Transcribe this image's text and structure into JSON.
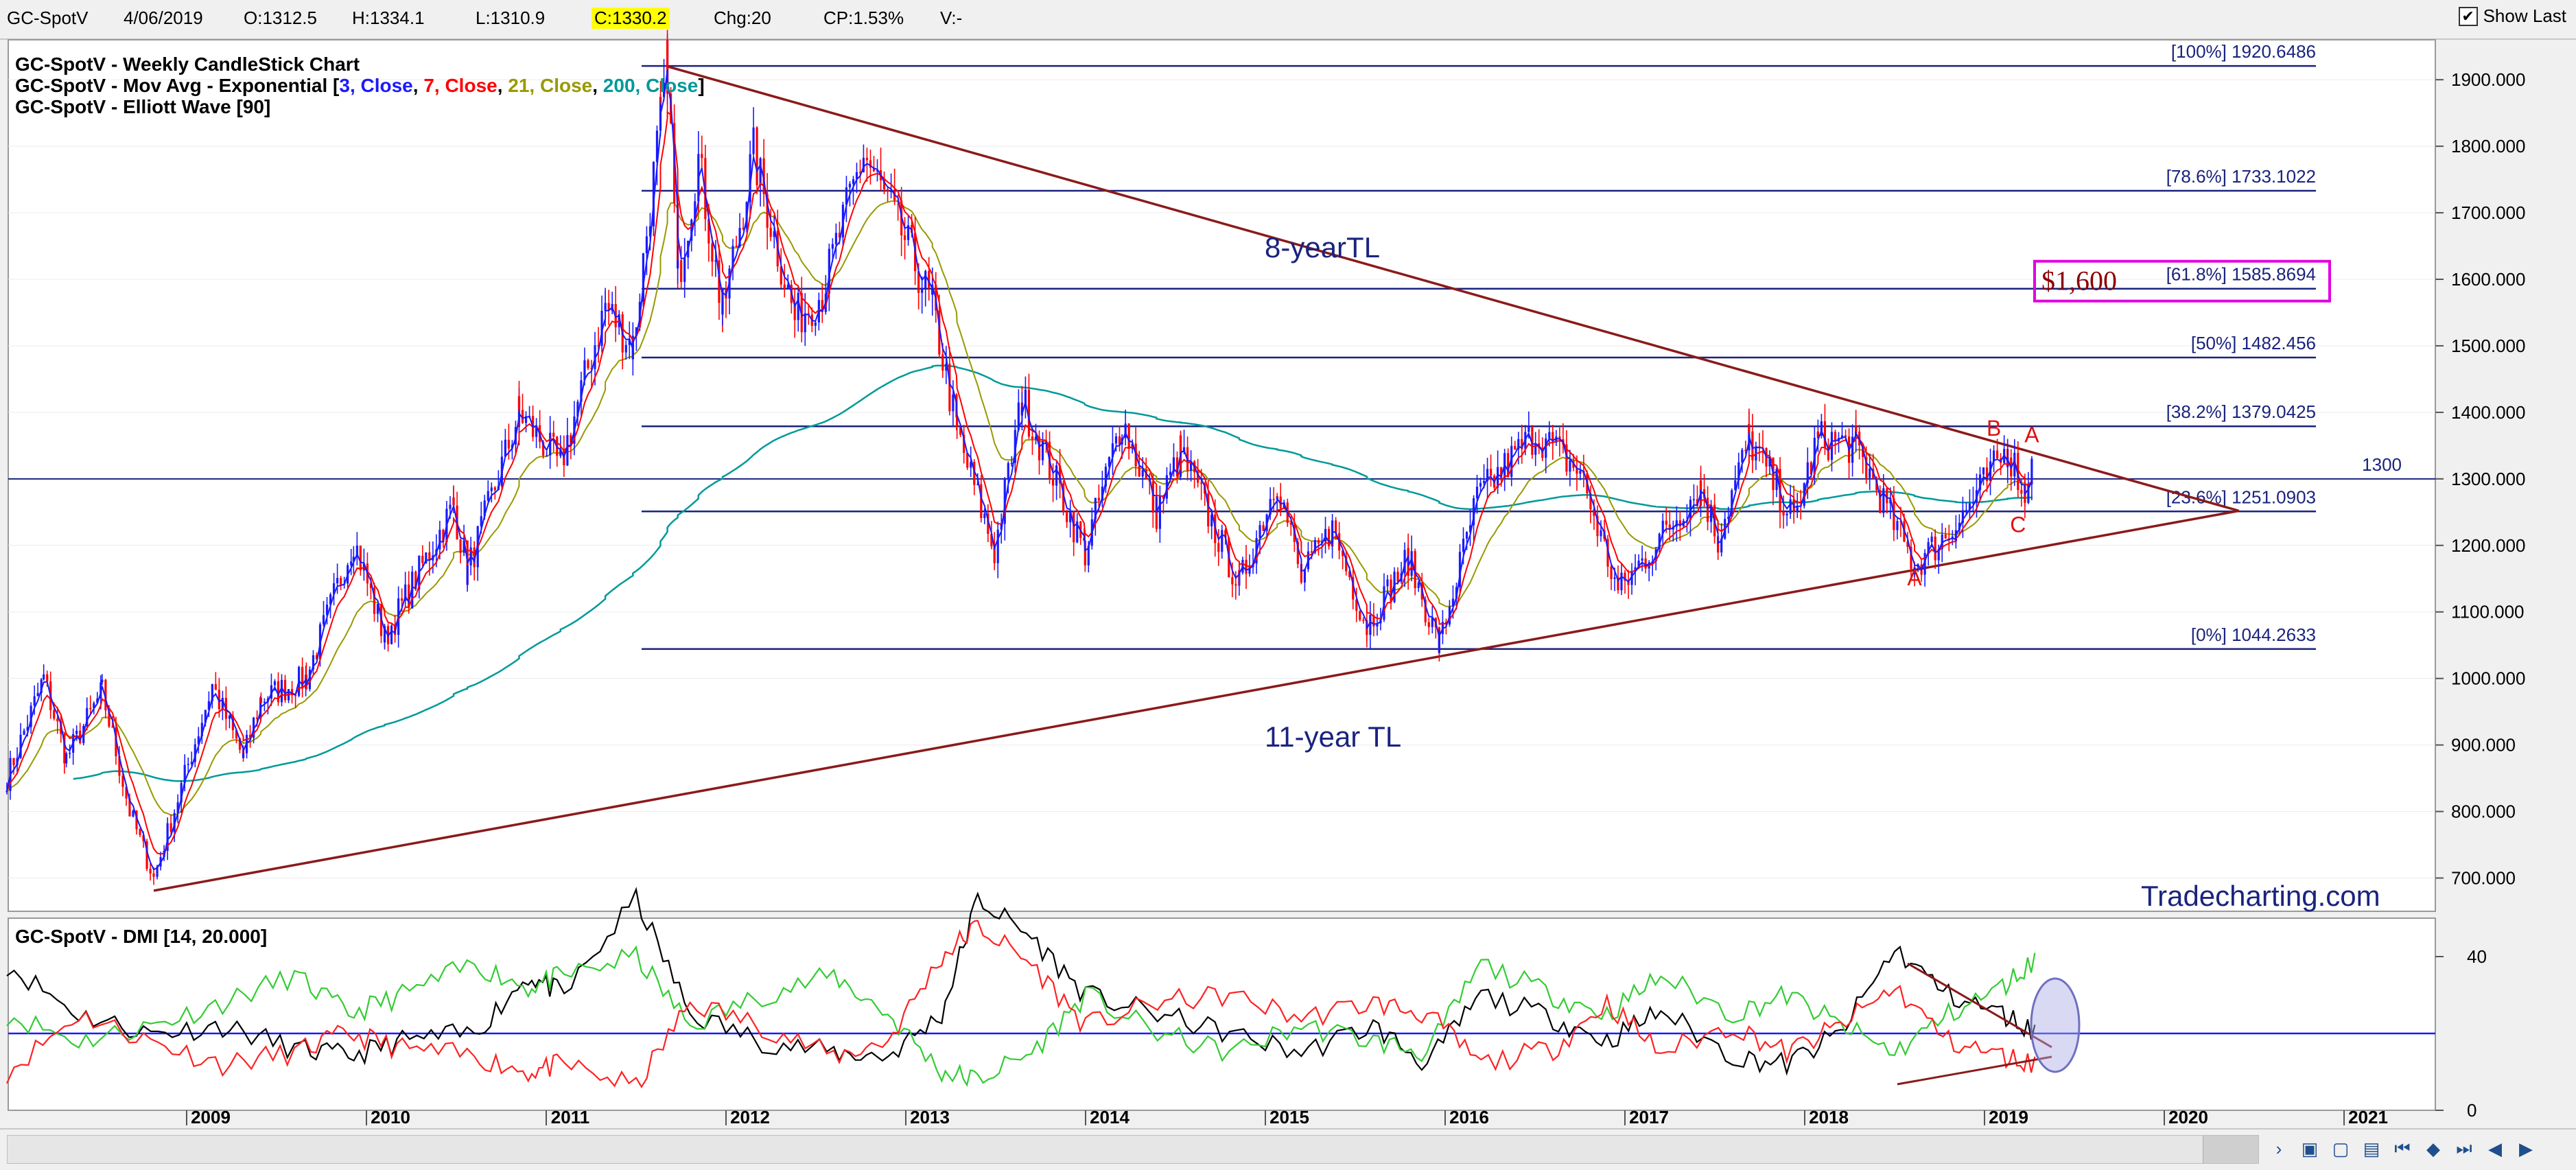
{
  "toolbar": {
    "symbol": "GC-SpotV",
    "date": "4/06/2019",
    "open": "O:1312.5",
    "high": "H:1334.1",
    "low": "L:1310.9",
    "close": "C:1330.2",
    "change": "Chg:20",
    "change_pct": "CP:1.53%",
    "volume": "V:-",
    "show_last_label": "Show Last",
    "show_last_checked": true
  },
  "legend": {
    "line1": "GC-SpotV - Weekly CandleStick Chart",
    "line2_prefix": "GC-SpotV - Mov Avg - Exponential [",
    "ma": [
      {
        "text": "3, Close",
        "color": "#1a1aff"
      },
      {
        "text": "7, Close",
        "color": "#ff0000"
      },
      {
        "text": "21, Close",
        "color": "#999900"
      },
      {
        "text": "200, Close",
        "color": "#009999"
      }
    ],
    "line2_suffix": "]",
    "line3": "GC-SpotV - Elliott Wave [90]",
    "dmi": "GC-SpotV - DMI [14, 20.000]"
  },
  "annotations": {
    "tl_upper": "8-yearTL",
    "tl_lower": "11-year TL",
    "target_label": "$1,600",
    "watermark": "Tradecharting.com",
    "level_1300": "1300",
    "wave_labels": [
      {
        "text": "B",
        "date": "2019-01-20",
        "price": 1365
      },
      {
        "text": "A",
        "date": "2019-04-07",
        "price": 1355
      },
      {
        "text": "C",
        "date": "2019-03-10",
        "price": 1220
      },
      {
        "text": "A",
        "date": "2018-08-12",
        "price": 1140
      }
    ]
  },
  "chart_data": [
    {
      "type": "candlestick",
      "x_axis": {
        "type": "date",
        "start": "2008-01-01",
        "end": "2021-12-31",
        "tick_labels": [
          "2009",
          "2010",
          "2011",
          "2012",
          "2013",
          "2014",
          "2015",
          "2016",
          "2017",
          "2018",
          "2019",
          "2020",
          "2021"
        ]
      },
      "y_axis": {
        "min": 650,
        "max": 1960,
        "side": "right",
        "tick_labels": [
          "700.000",
          "800.000",
          "900.000",
          "1000.000",
          "1100.000",
          "1200.000",
          "1300.000",
          "1400.000",
          "1500.000",
          "1600.000",
          "1700.000",
          "1800.000",
          "1900.000"
        ]
      },
      "fib_levels": [
        {
          "label": "[100%] 1920.6486",
          "value": 1920.6486
        },
        {
          "label": "[78.6%] 1733.1022",
          "value": 1733.1022
        },
        {
          "label": "[61.8%] 1585.8694",
          "value": 1585.8694
        },
        {
          "label": "[50%] 1482.456",
          "value": 1482.456
        },
        {
          "label": "[38.2%] 1379.0425",
          "value": 1379.0425
        },
        {
          "label": "[23.6%] 1251.0903",
          "value": 1251.0903
        },
        {
          "label": "[0%] 1044.2633",
          "value": 1044.2633
        }
      ],
      "horizontal_line": {
        "value": 1300
      },
      "trendlines": [
        {
          "name": "8-yearTL",
          "from": {
            "date": "2011-09-04",
            "price": 1920
          },
          "to": {
            "date": "2020-06-01",
            "price": 1252
          }
        },
        {
          "name": "11-year TL",
          "from": {
            "date": "2008-10-26",
            "price": 681
          },
          "to": {
            "date": "2020-06-01",
            "price": 1252
          }
        }
      ],
      "price_path": [
        [
          "2008-01-01",
          850
        ],
        [
          "2008-03-16",
          1000
        ],
        [
          "2008-05-01",
          880
        ],
        [
          "2008-07-13",
          980
        ],
        [
          "2008-09-07",
          800
        ],
        [
          "2008-10-26",
          700
        ],
        [
          "2009-02-22",
          990
        ],
        [
          "2009-04-26",
          880
        ],
        [
          "2009-06-01",
          970
        ],
        [
          "2009-09-01",
          1000
        ],
        [
          "2009-12-06",
          1210
        ],
        [
          "2010-02-07",
          1060
        ],
        [
          "2010-06-27",
          1260
        ],
        [
          "2010-07-25",
          1160
        ],
        [
          "2010-11-07",
          1400
        ],
        [
          "2011-01-30",
          1320
        ],
        [
          "2011-05-01",
          1560
        ],
        [
          "2011-06-26",
          1500
        ],
        [
          "2011-08-21",
          1840
        ],
        [
          "2011-09-04",
          1920
        ],
        [
          "2011-09-25",
          1600
        ],
        [
          "2011-11-06",
          1780
        ],
        [
          "2011-12-25",
          1550
        ],
        [
          "2012-02-26",
          1790
        ],
        [
          "2012-05-20",
          1540
        ],
        [
          "2012-07-15",
          1580
        ],
        [
          "2012-10-07",
          1790
        ],
        [
          "2012-12-30",
          1660
        ],
        [
          "2013-02-24",
          1560
        ],
        [
          "2013-04-15",
          1370
        ],
        [
          "2013-06-30",
          1190
        ],
        [
          "2013-08-25",
          1420
        ],
        [
          "2013-12-31",
          1190
        ],
        [
          "2014-03-16",
          1390
        ],
        [
          "2014-05-25",
          1250
        ],
        [
          "2014-07-13",
          1340
        ],
        [
          "2014-11-09",
          1140
        ],
        [
          "2015-01-25",
          1300
        ],
        [
          "2015-03-15",
          1150
        ],
        [
          "2015-05-17",
          1225
        ],
        [
          "2015-07-26",
          1080
        ],
        [
          "2015-10-18",
          1180
        ],
        [
          "2015-12-20",
          1050
        ],
        [
          "2016-03-06",
          1270
        ],
        [
          "2016-07-03",
          1370
        ],
        [
          "2016-10-02",
          1310
        ],
        [
          "2016-12-18",
          1130
        ],
        [
          "2017-06-04",
          1290
        ],
        [
          "2017-07-09",
          1210
        ],
        [
          "2017-09-10",
          1360
        ],
        [
          "2017-12-10",
          1240
        ],
        [
          "2018-01-28",
          1360
        ],
        [
          "2018-04-15",
          1350
        ],
        [
          "2018-08-12",
          1170
        ],
        [
          "2018-11-04",
          1230
        ],
        [
          "2019-02-17",
          1345
        ],
        [
          "2019-03-24",
          1280
        ],
        [
          "2019-04-07",
          1330
        ]
      ],
      "moving_averages": [
        {
          "name": "3, Close",
          "period": 3,
          "color": "#1a1aff"
        },
        {
          "name": "7, Close",
          "period": 7,
          "color": "#ff0000"
        },
        {
          "name": "21, Close",
          "period": 21,
          "color": "#999900"
        },
        {
          "name": "200, Close",
          "period": 200,
          "color": "#009999"
        }
      ],
      "last_close": 1330.2
    },
    {
      "type": "line",
      "name": "DMI [14, 20.000]",
      "y_axis": {
        "min": 0,
        "max": 50,
        "tick_labels": [
          "0",
          "40"
        ]
      },
      "threshold": 20,
      "series": [
        {
          "role": "black-line",
          "color": "#000000",
          "values": [
            [
              2008.0,
              38
            ],
            [
              2008.4,
              25
            ],
            [
              2008.8,
              20
            ],
            [
              2009.2,
              22
            ],
            [
              2009.6,
              16
            ],
            [
              2009.9,
              14
            ],
            [
              2010.2,
              18
            ],
            [
              2010.6,
              20
            ],
            [
              2010.9,
              35
            ],
            [
              2011.1,
              30
            ],
            [
              2011.5,
              55
            ],
            [
              2011.8,
              25
            ],
            [
              2012.2,
              18
            ],
            [
              2012.6,
              15
            ],
            [
              2012.9,
              14
            ],
            [
              2013.2,
              25
            ],
            [
              2013.4,
              55
            ],
            [
              2013.7,
              45
            ],
            [
              2014.0,
              30
            ],
            [
              2014.4,
              25
            ],
            [
              2014.8,
              20
            ],
            [
              2015.2,
              15
            ],
            [
              2015.6,
              22
            ],
            [
              2015.9,
              12
            ],
            [
              2016.2,
              30
            ],
            [
              2016.6,
              24
            ],
            [
              2016.9,
              18
            ],
            [
              2017.2,
              26
            ],
            [
              2017.6,
              14
            ],
            [
              2017.9,
              12
            ],
            [
              2018.2,
              20
            ],
            [
              2018.5,
              42
            ],
            [
              2018.8,
              30
            ],
            [
              2019.1,
              25
            ],
            [
              2019.3,
              20
            ]
          ]
        },
        {
          "role": "green-line",
          "color": "#33cc33",
          "values": [
            [
              2008.0,
              25
            ],
            [
              2008.4,
              18
            ],
            [
              2008.8,
              22
            ],
            [
              2009.2,
              28
            ],
            [
              2009.6,
              35
            ],
            [
              2009.9,
              25
            ],
            [
              2010.2,
              30
            ],
            [
              2010.6,
              38
            ],
            [
              2010.9,
              32
            ],
            [
              2011.1,
              35
            ],
            [
              2011.5,
              40
            ],
            [
              2011.8,
              22
            ],
            [
              2012.2,
              30
            ],
            [
              2012.6,
              35
            ],
            [
              2012.9,
              25
            ],
            [
              2013.2,
              10
            ],
            [
              2013.4,
              8
            ],
            [
              2013.7,
              15
            ],
            [
              2014.0,
              30
            ],
            [
              2014.4,
              20
            ],
            [
              2014.8,
              15
            ],
            [
              2015.2,
              22
            ],
            [
              2015.6,
              18
            ],
            [
              2015.9,
              15
            ],
            [
              2016.2,
              38
            ],
            [
              2016.6,
              30
            ],
            [
              2016.9,
              25
            ],
            [
              2017.2,
              35
            ],
            [
              2017.6,
              25
            ],
            [
              2017.9,
              30
            ],
            [
              2018.2,
              22
            ],
            [
              2018.5,
              15
            ],
            [
              2018.8,
              25
            ],
            [
              2019.1,
              32
            ],
            [
              2019.3,
              40
            ]
          ]
        },
        {
          "role": "red-line",
          "color": "#ff2222",
          "values": [
            [
              2008.0,
              10
            ],
            [
              2008.4,
              25
            ],
            [
              2008.8,
              18
            ],
            [
              2009.2,
              12
            ],
            [
              2009.6,
              15
            ],
            [
              2009.9,
              20
            ],
            [
              2010.2,
              16
            ],
            [
              2010.6,
              14
            ],
            [
              2010.9,
              10
            ],
            [
              2011.1,
              12
            ],
            [
              2011.5,
              6
            ],
            [
              2011.8,
              28
            ],
            [
              2012.2,
              22
            ],
            [
              2012.6,
              14
            ],
            [
              2012.9,
              18
            ],
            [
              2013.2,
              40
            ],
            [
              2013.4,
              48
            ],
            [
              2013.7,
              38
            ],
            [
              2014.0,
              22
            ],
            [
              2014.4,
              28
            ],
            [
              2014.8,
              30
            ],
            [
              2015.2,
              24
            ],
            [
              2015.6,
              28
            ],
            [
              2015.9,
              25
            ],
            [
              2016.2,
              12
            ],
            [
              2016.6,
              16
            ],
            [
              2016.9,
              28
            ],
            [
              2017.2,
              15
            ],
            [
              2017.6,
              22
            ],
            [
              2017.9,
              15
            ],
            [
              2018.2,
              22
            ],
            [
              2018.5,
              32
            ],
            [
              2018.8,
              18
            ],
            [
              2019.1,
              14
            ],
            [
              2019.3,
              12
            ]
          ]
        }
      ]
    }
  ]
}
